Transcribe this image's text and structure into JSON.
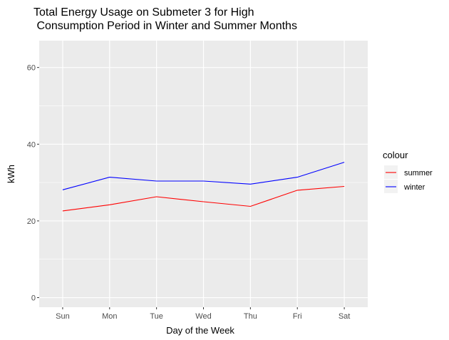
{
  "chart_data": {
    "type": "line",
    "title_lines": [
      "Total Energy Usage on Submeter 3 for High",
      " Consumption Period in Winter and Summer Months"
    ],
    "xlabel": "Day of the Week",
    "ylabel": "kWh",
    "categories": [
      "Sun",
      "Mon",
      "Tue",
      "Wed",
      "Thu",
      "Fri",
      "Sat"
    ],
    "ylim": [
      -2.5,
      67
    ],
    "yticks": [
      0,
      20,
      40,
      60
    ],
    "grid": true,
    "legend": {
      "title": "colour",
      "placement": "right",
      "entries": [
        "summer",
        "winter"
      ]
    },
    "series": [
      {
        "name": "summer",
        "color": "#ff0000",
        "values": [
          22.6,
          24.2,
          26.3,
          25.0,
          23.8,
          28.0,
          29.0
        ]
      },
      {
        "name": "winter",
        "color": "#0000ff",
        "values": [
          28.1,
          31.4,
          30.4,
          30.4,
          29.6,
          31.4,
          35.3
        ]
      }
    ]
  }
}
